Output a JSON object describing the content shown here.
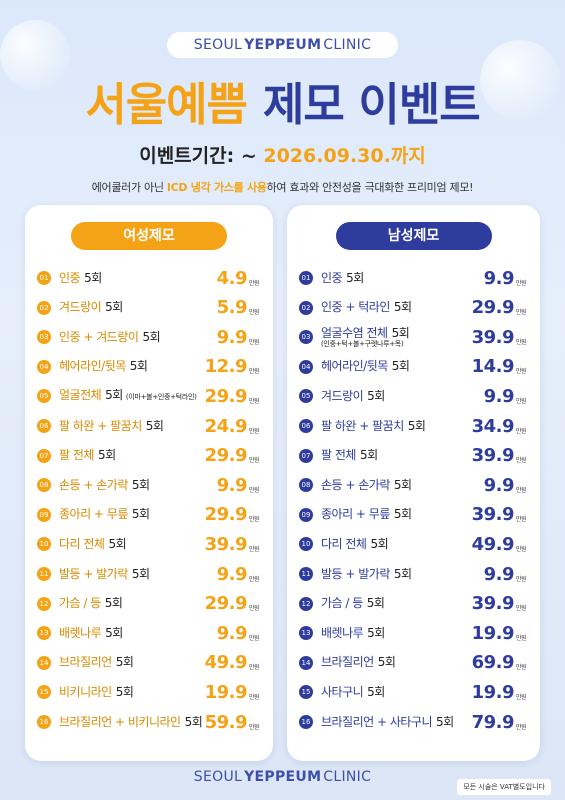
{
  "header": {
    "brand": {
      "first": "SEOUL",
      "bold": "YEPPEUM",
      "last": "CLINIC"
    },
    "title": {
      "orange": "서울예쁨",
      "blue": "제모 이벤트"
    },
    "period": {
      "label": "이벤트기간: ~ ",
      "date": "2026.09.30.",
      "suffix": "까지"
    },
    "subtitle": {
      "before": "에어쿨러가 아닌 ",
      "highlight": "ICD 냉각 가스를 사용",
      "after": "하여 효과와 안전성을 극대화한 프리미엄 제모!"
    }
  },
  "panels": [
    {
      "title": "여성제모",
      "items": [
        {
          "no": "01",
          "name": "인중",
          "count": "5회",
          "price": "4.9",
          "unit": "만원"
        },
        {
          "no": "02",
          "name": "겨드랑이",
          "count": "5회",
          "price": "5.9",
          "unit": "만원"
        },
        {
          "no": "03",
          "name": "인중 + 겨드랑이",
          "count": "5회",
          "price": "9.9",
          "unit": "만원"
        },
        {
          "no": "04",
          "name": "헤어라인/뒷목",
          "count": "5회",
          "price": "12.9",
          "unit": "만원"
        },
        {
          "no": "05",
          "name": "얼굴전체",
          "count": "5회",
          "note": "(이마+볼+인중+턱라인)",
          "price": "29.9",
          "unit": "만원"
        },
        {
          "no": "06",
          "name": "팔 하완 + 팔꿈치",
          "count": "5회",
          "price": "24.9",
          "unit": "만원"
        },
        {
          "no": "07",
          "name": "팔 전체",
          "count": "5회",
          "price": "29.9",
          "unit": "만원"
        },
        {
          "no": "08",
          "name": "손등 + 손가락",
          "count": "5회",
          "price": "9.9",
          "unit": "만원"
        },
        {
          "no": "09",
          "name": "종아리 + 무릎",
          "count": "5회",
          "price": "29.9",
          "unit": "만원"
        },
        {
          "no": "10",
          "name": "다리 전체",
          "count": "5회",
          "price": "39.9",
          "unit": "만원"
        },
        {
          "no": "11",
          "name": "발등 + 발가락",
          "count": "5회",
          "price": "9.9",
          "unit": "만원"
        },
        {
          "no": "12",
          "name": "가슴 / 등",
          "count": "5회",
          "price": "29.9",
          "unit": "만원"
        },
        {
          "no": "13",
          "name": "배렛나루",
          "count": "5회",
          "price": "9.9",
          "unit": "만원"
        },
        {
          "no": "14",
          "name": "브라질리언",
          "count": "5회",
          "price": "49.9",
          "unit": "만원"
        },
        {
          "no": "15",
          "name": "비키니라인",
          "count": "5회",
          "price": "19.9",
          "unit": "만원"
        },
        {
          "no": "16",
          "name": "브라질리언 + 비키니라인",
          "count": "5회",
          "price": "59.9",
          "unit": "만원"
        }
      ]
    },
    {
      "title": "남성제모",
      "items": [
        {
          "no": "01",
          "name": "인중",
          "count": "5회",
          "price": "9.9",
          "unit": "만원"
        },
        {
          "no": "02",
          "name": "인중 + 턱라인",
          "count": "5회",
          "price": "29.9",
          "unit": "만원"
        },
        {
          "no": "03",
          "name": "얼굴수염 전체",
          "count": "5회",
          "note": "(인중+턱+볼+구렛나루+목)",
          "price": "39.9",
          "unit": "만원"
        },
        {
          "no": "04",
          "name": "헤어라인/뒷목",
          "count": "5회",
          "price": "14.9",
          "unit": "만원"
        },
        {
          "no": "05",
          "name": "겨드랑이",
          "count": "5회",
          "price": "9.9",
          "unit": "만원"
        },
        {
          "no": "06",
          "name": "팔 하완 + 팔꿈치",
          "count": "5회",
          "price": "34.9",
          "unit": "만원"
        },
        {
          "no": "07",
          "name": "팔 전체",
          "count": "5회",
          "price": "39.9",
          "unit": "만원"
        },
        {
          "no": "08",
          "name": "손등 + 손가락",
          "count": "5회",
          "price": "9.9",
          "unit": "만원"
        },
        {
          "no": "09",
          "name": "종아리 + 무릎",
          "count": "5회",
          "price": "39.9",
          "unit": "만원"
        },
        {
          "no": "10",
          "name": "다리 전체",
          "count": "5회",
          "price": "49.9",
          "unit": "만원"
        },
        {
          "no": "11",
          "name": "발등 + 발가락",
          "count": "5회",
          "price": "9.9",
          "unit": "만원"
        },
        {
          "no": "12",
          "name": "가슴 / 등",
          "count": "5회",
          "price": "39.9",
          "unit": "만원"
        },
        {
          "no": "13",
          "name": "배렛나루",
          "count": "5회",
          "price": "19.9",
          "unit": "만원"
        },
        {
          "no": "14",
          "name": "브라질리언",
          "count": "5회",
          "price": "69.9",
          "unit": "만원"
        },
        {
          "no": "15",
          "name": "사타구니",
          "count": "5회",
          "price": "19.9",
          "unit": "만원"
        },
        {
          "no": "16",
          "name": "브라질리언 + 사타구니",
          "count": "5회",
          "price": "79.9",
          "unit": "만원"
        }
      ]
    }
  ],
  "footer": {
    "brand": {
      "first": "SEOUL",
      "bold": "YEPPEUM",
      "last": "CLINIC"
    },
    "note": "모든 시술은 VAT별도입니다"
  }
}
